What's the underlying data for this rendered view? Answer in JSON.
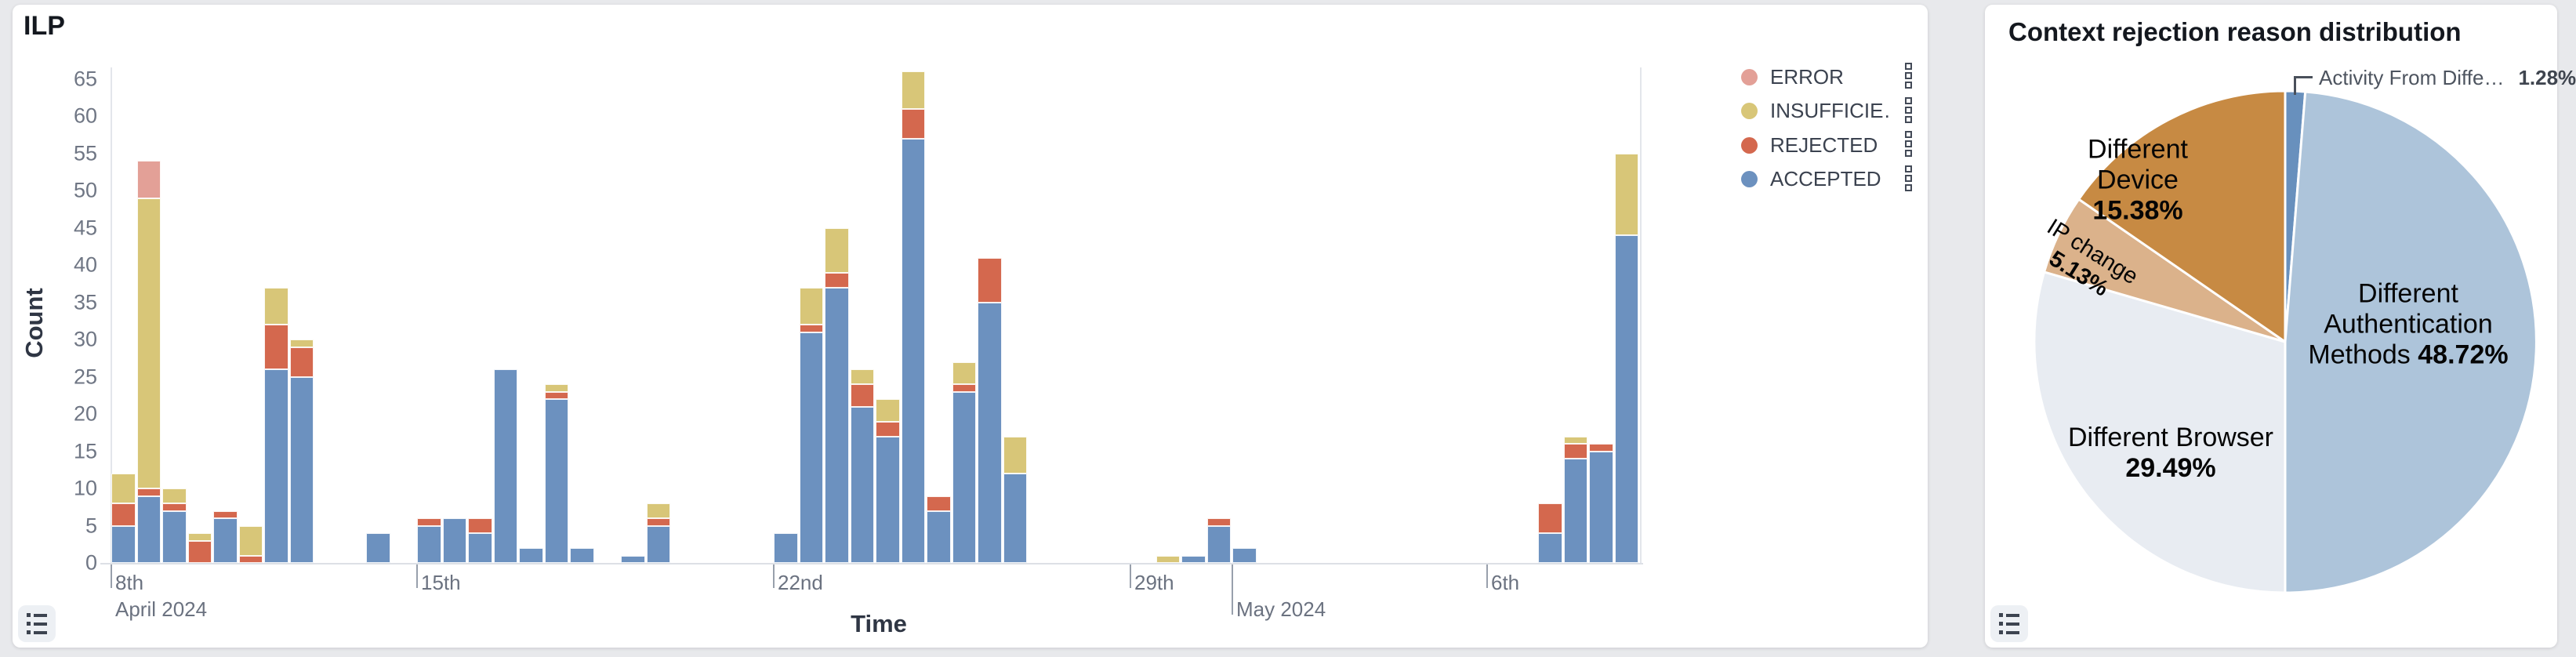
{
  "left_panel": {
    "title": "ILP",
    "x_axis_title": "Time",
    "y_axis_title": "Count",
    "legend": [
      {
        "key": "error",
        "label": "ERROR",
        "color": "#e3a097"
      },
      {
        "key": "insufficient",
        "label": "INSUFFICIE…",
        "color": "#d8c678"
      },
      {
        "key": "rejected",
        "label": "REJECTED",
        "color": "#d4684e"
      },
      {
        "key": "accepted",
        "label": "ACCEPTED",
        "color": "#6c91bf"
      }
    ],
    "chart_data": {
      "type": "bar",
      "stacked": true,
      "xlabel": "Time",
      "ylabel": "Count",
      "ylim": [
        0,
        65
      ],
      "grid": false,
      "y_ticks": [
        0,
        5,
        10,
        15,
        20,
        25,
        30,
        35,
        40,
        45,
        50,
        55,
        60,
        65
      ],
      "x_ticks": [
        {
          "slot": 0,
          "label": "8th",
          "sub_label": "April 2024"
        },
        {
          "slot": 12,
          "label": "15th"
        },
        {
          "slot": 26,
          "label": "22nd"
        },
        {
          "slot": 40,
          "label": "29th"
        },
        {
          "slot": 44,
          "label": "May 2024",
          "second_row": true,
          "long_tick": true
        },
        {
          "slot": 54,
          "label": "6th"
        }
      ],
      "slot_count": 60,
      "bin": "half-day",
      "stack_order_bottom_to_top": [
        "accepted",
        "rejected",
        "insufficient",
        "error"
      ],
      "bars": [
        {
          "slot": 0,
          "accepted": 5,
          "rejected": 3,
          "insufficient": 4,
          "error": 0
        },
        {
          "slot": 1,
          "accepted": 9,
          "rejected": 1,
          "insufficient": 39,
          "error": 5
        },
        {
          "slot": 2,
          "accepted": 7,
          "rejected": 1,
          "insufficient": 2,
          "error": 0
        },
        {
          "slot": 3,
          "accepted": 0,
          "rejected": 3,
          "insufficient": 1,
          "error": 0
        },
        {
          "slot": 4,
          "accepted": 6,
          "rejected": 1,
          "insufficient": 0,
          "error": 0
        },
        {
          "slot": 5,
          "accepted": 0,
          "rejected": 1,
          "insufficient": 4,
          "error": 0
        },
        {
          "slot": 6,
          "accepted": 26,
          "rejected": 6,
          "insufficient": 5,
          "error": 0
        },
        {
          "slot": 7,
          "accepted": 25,
          "rejected": 4,
          "insufficient": 1,
          "error": 0
        },
        {
          "slot": 10,
          "accepted": 4,
          "rejected": 0,
          "insufficient": 0,
          "error": 0
        },
        {
          "slot": 12,
          "accepted": 5,
          "rejected": 1,
          "insufficient": 0,
          "error": 0
        },
        {
          "slot": 13,
          "accepted": 6,
          "rejected": 0,
          "insufficient": 0,
          "error": 0
        },
        {
          "slot": 14,
          "accepted": 4,
          "rejected": 2,
          "insufficient": 0,
          "error": 0
        },
        {
          "slot": 15,
          "accepted": 26,
          "rejected": 0,
          "insufficient": 0,
          "error": 0
        },
        {
          "slot": 16,
          "accepted": 2,
          "rejected": 0,
          "insufficient": 0,
          "error": 0
        },
        {
          "slot": 17,
          "accepted": 22,
          "rejected": 1,
          "insufficient": 1,
          "error": 0
        },
        {
          "slot": 18,
          "accepted": 2,
          "rejected": 0,
          "insufficient": 0,
          "error": 0
        },
        {
          "slot": 20,
          "accepted": 1,
          "rejected": 0,
          "insufficient": 0,
          "error": 0
        },
        {
          "slot": 21,
          "accepted": 5,
          "rejected": 1,
          "insufficient": 2,
          "error": 0
        },
        {
          "slot": 26,
          "accepted": 4,
          "rejected": 0,
          "insufficient": 0,
          "error": 0
        },
        {
          "slot": 27,
          "accepted": 31,
          "rejected": 1,
          "insufficient": 5,
          "error": 0
        },
        {
          "slot": 28,
          "accepted": 37,
          "rejected": 2,
          "insufficient": 6,
          "error": 0
        },
        {
          "slot": 29,
          "accepted": 21,
          "rejected": 3,
          "insufficient": 2,
          "error": 0
        },
        {
          "slot": 30,
          "accepted": 17,
          "rejected": 2,
          "insufficient": 3,
          "error": 0
        },
        {
          "slot": 31,
          "accepted": 57,
          "rejected": 4,
          "insufficient": 5,
          "error": 0
        },
        {
          "slot": 32,
          "accepted": 7,
          "rejected": 2,
          "insufficient": 0,
          "error": 0
        },
        {
          "slot": 33,
          "accepted": 23,
          "rejected": 1,
          "insufficient": 3,
          "error": 0
        },
        {
          "slot": 34,
          "accepted": 35,
          "rejected": 6,
          "insufficient": 0,
          "error": 0
        },
        {
          "slot": 35,
          "accepted": 12,
          "rejected": 0,
          "insufficient": 5,
          "error": 0
        },
        {
          "slot": 41,
          "accepted": 0,
          "rejected": 0,
          "insufficient": 1,
          "error": 0
        },
        {
          "slot": 42,
          "accepted": 1,
          "rejected": 0,
          "insufficient": 0,
          "error": 0
        },
        {
          "slot": 43,
          "accepted": 5,
          "rejected": 1,
          "insufficient": 0,
          "error": 0
        },
        {
          "slot": 44,
          "accepted": 2,
          "rejected": 0,
          "insufficient": 0,
          "error": 0
        },
        {
          "slot": 56,
          "accepted": 4,
          "rejected": 4,
          "insufficient": 0,
          "error": 0
        },
        {
          "slot": 57,
          "accepted": 14,
          "rejected": 2,
          "insufficient": 1,
          "error": 0
        },
        {
          "slot": 58,
          "accepted": 15,
          "rejected": 1,
          "insufficient": 0,
          "error": 0
        },
        {
          "slot": 59,
          "accepted": 44,
          "rejected": 0,
          "insufficient": 11,
          "error": 0
        }
      ]
    },
    "footer_icon": "list-icon"
  },
  "right_panel": {
    "title": "Context rejection reason distribution",
    "chart_data": {
      "type": "pie",
      "start_angle_deg": 0,
      "direction": "clockwise",
      "slices": [
        {
          "key": "activity",
          "label": "Activity From Diffe…",
          "pct": 1.28,
          "pct_display": "1.28%",
          "color": "#6890bd",
          "callout": true
        },
        {
          "key": "auth",
          "label": "Different Authentication Methods",
          "pct": 48.72,
          "pct_display": "48.72%",
          "color": "#adc4da"
        },
        {
          "key": "browser",
          "label": "Different Browser",
          "pct": 29.49,
          "pct_display": "29.49%",
          "color": "#e8ecf2"
        },
        {
          "key": "ip",
          "label": "IP change",
          "pct": 5.13,
          "pct_display": "5.13%",
          "color": "#dbb28b"
        },
        {
          "key": "device",
          "label": "Different Device",
          "pct": 15.38,
          "pct_display": "15.38%",
          "color": "#c78a43"
        }
      ]
    },
    "footer_icon": "list-icon"
  }
}
